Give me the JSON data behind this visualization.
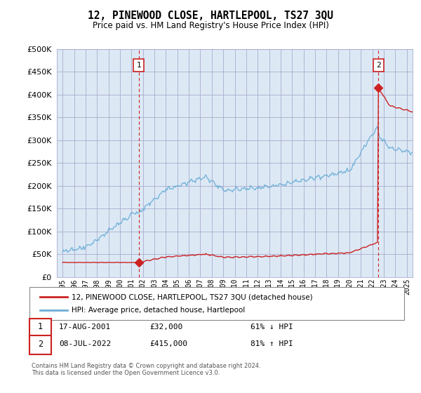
{
  "title": "12, PINEWOOD CLOSE, HARTLEPOOL, TS27 3QU",
  "subtitle": "Price paid vs. HM Land Registry's House Price Index (HPI)",
  "legend_line1": "12, PINEWOOD CLOSE, HARTLEPOOL, TS27 3QU (detached house)",
  "legend_line2": "HPI: Average price, detached house, Hartlepool",
  "annotation1_date": "17-AUG-2001",
  "annotation1_price": "£32,000",
  "annotation1_hpi": "61% ↓ HPI",
  "annotation2_date": "08-JUL-2022",
  "annotation2_price": "£415,000",
  "annotation2_hpi": "81% ↑ HPI",
  "footnote": "Contains HM Land Registry data © Crown copyright and database right 2024.\nThis data is licensed under the Open Government Licence v3.0.",
  "hpi_color": "#6baed6",
  "price_color": "#cc2222",
  "background_color": "#ffffff",
  "chart_bg_color": "#dce9f5",
  "grid_color": "#aaaacc",
  "ylim": [
    0,
    500000
  ],
  "yticks": [
    0,
    50000,
    100000,
    150000,
    200000,
    250000,
    300000,
    350000,
    400000,
    450000,
    500000
  ],
  "sale1_x": 2001.63,
  "sale1_y": 32000,
  "sale2_x": 2022.52,
  "sale2_y": 415000,
  "xmin": 1994.5,
  "xmax": 2025.5
}
